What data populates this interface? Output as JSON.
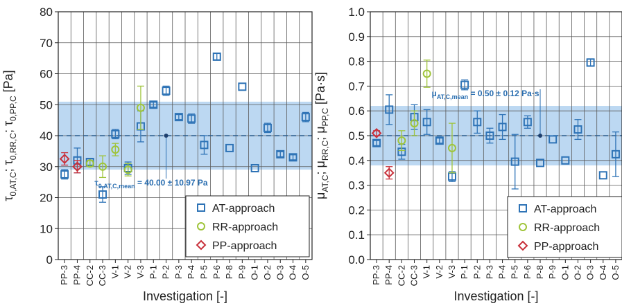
{
  "chart_data": [
    {
      "type": "scatter",
      "categories": [
        "PP-3",
        "PP-4",
        "CC-2",
        "CC-3",
        "V-1",
        "V-2",
        "V-3",
        "P-1",
        "P-2",
        "P-3",
        "P-4",
        "P-5",
        "P-6",
        "P-8",
        "P-9",
        "O-1",
        "O-2",
        "O-3",
        "O-4",
        "O-5"
      ],
      "xlabel": "Investigation [-]",
      "ylabel": "τ0,AT,C; τ0,RR,C; τ0,PP,C [Pa]",
      "ylabel_parts": [
        "τ",
        "0,AT,C",
        "; τ",
        "0,RR,C",
        "; τ",
        "0,PP,C",
        " [Pa]"
      ],
      "ylim": [
        0,
        80
      ],
      "yticks": [
        "0",
        "10",
        "20",
        "30",
        "40",
        "50",
        "60",
        "70",
        "80"
      ],
      "grid": true,
      "legend_position": "bottom-right",
      "band": {
        "low": 29.03,
        "high": 50.97,
        "color": "#bcd8f2"
      },
      "mean_line": {
        "value": 40.0,
        "label_main": "τ",
        "label_sub": "0,AT,C,mean",
        "label_value": " = 40.00 ± 10.97 Pa",
        "label_color": "#2a6eb0"
      },
      "mean_marker": {
        "category": "P-2",
        "value": 40.0
      },
      "series": [
        {
          "name": "AT-approach",
          "marker": "square",
          "color": "#2e73b6",
          "points": [
            {
              "x": "PP-3",
              "y": 27.5,
              "err": 1.5
            },
            {
              "x": "PP-4",
              "y": 32.0,
              "err": 4.0
            },
            {
              "x": "CC-2",
              "y": 31.5,
              "err": 1.0
            },
            {
              "x": "CC-3",
              "y": 21.0,
              "err": 2.5
            },
            {
              "x": "V-1",
              "y": 40.5,
              "err": 1.5
            },
            {
              "x": "V-2",
              "y": 29.5,
              "err": 2.0
            },
            {
              "x": "V-3",
              "y": 43.0,
              "err": 5.0
            },
            {
              "x": "P-1",
              "y": 50.0,
              "err": 0.8
            },
            {
              "x": "P-2",
              "y": 54.5,
              "err": 1.5
            },
            {
              "x": "P-3",
              "y": 46.0,
              "err": 0.8
            },
            {
              "x": "P-4",
              "y": 45.5,
              "err": 1.5
            },
            {
              "x": "P-5",
              "y": 37.0,
              "err": 3.0
            },
            {
              "x": "P-6",
              "y": 65.5,
              "err": 1.0
            },
            {
              "x": "P-8",
              "y": 36.0,
              "err": 0
            },
            {
              "x": "P-9",
              "y": 55.8,
              "err": 0
            },
            {
              "x": "O-1",
              "y": 29.5,
              "err": 0
            },
            {
              "x": "O-2",
              "y": 42.5,
              "err": 1.5
            },
            {
              "x": "O-3",
              "y": 34.0,
              "err": 0.8
            },
            {
              "x": "O-4",
              "y": 33.0,
              "err": 0.8
            },
            {
              "x": "O-5",
              "y": 46.0,
              "err": 1.5
            }
          ]
        },
        {
          "name": "RR-approach",
          "marker": "circle",
          "color": "#9fc43a",
          "points": [
            {
              "x": "CC-2",
              "y": 31.0,
              "err": 1.0
            },
            {
              "x": "CC-3",
              "y": 30.0,
              "err": 3.5
            },
            {
              "x": "V-2",
              "y": 29.0,
              "err": 2.0
            },
            {
              "x": "V-1",
              "y": 35.5,
              "err": 2.0
            },
            {
              "x": "V-3",
              "y": 49.0,
              "err": 7.0
            }
          ]
        },
        {
          "name": "PP-approach",
          "marker": "diamond",
          "color": "#c8303a",
          "points": [
            {
              "x": "PP-3",
              "y": 32.5,
              "err": 2.0
            },
            {
              "x": "PP-4",
              "y": 30.0,
              "err": 2.0
            }
          ]
        }
      ]
    },
    {
      "type": "scatter",
      "categories": [
        "PP-3",
        "PP-4",
        "CC-2",
        "CC-3",
        "V-1",
        "V-2",
        "V-3",
        "P-1",
        "P-2",
        "P-3",
        "P-4",
        "P-5",
        "P-6",
        "P-8",
        "P-9",
        "O-1",
        "O-2",
        "O-3",
        "O-4",
        "O-5"
      ],
      "xlabel": "Investigation [-]",
      "ylabel": "μAT,C; μRR,C; μPP,C [Pa·s]",
      "ylabel_parts": [
        "μ",
        "AT,C",
        "; μ",
        "RR,C",
        "; μ",
        "PP,C",
        " [Pa·s]"
      ],
      "ylim": [
        0,
        1.0
      ],
      "yticks": [
        "0.0",
        "0.1",
        "0.2",
        "0.3",
        "0.4",
        "0.5",
        "0.6",
        "0.7",
        "0.8",
        "0.9",
        "1.0"
      ],
      "grid": true,
      "legend_position": "bottom-right",
      "band": {
        "low": 0.38,
        "high": 0.62,
        "color": "#bcd8f2"
      },
      "mean_line": {
        "value": 0.5,
        "label_main": "μ",
        "label_sub": "AT,C,mean",
        "label_value": " = 0.50 ± 0.12 Pa·s",
        "label_color": "#2a6eb0"
      },
      "mean_marker": {
        "category": "P-8",
        "value": 0.5
      },
      "series": [
        {
          "name": "AT-approach",
          "marker": "square",
          "color": "#2e73b6",
          "points": [
            {
              "x": "PP-3",
              "y": 0.47,
              "err": 0.01
            },
            {
              "x": "PP-4",
              "y": 0.605,
              "err": 0.06
            },
            {
              "x": "CC-2",
              "y": 0.435,
              "err": 0.03
            },
            {
              "x": "CC-3",
              "y": 0.575,
              "err": 0.05
            },
            {
              "x": "V-1",
              "y": 0.555,
              "err": 0.05
            },
            {
              "x": "V-2",
              "y": 0.48,
              "err": 0.01
            },
            {
              "x": "V-3",
              "y": 0.335,
              "err": 0.02
            },
            {
              "x": "P-1",
              "y": 0.705,
              "err": 0.02
            },
            {
              "x": "P-2",
              "y": 0.555,
              "err": 0.045
            },
            {
              "x": "P-3",
              "y": 0.5,
              "err": 0.03
            },
            {
              "x": "P-4",
              "y": 0.535,
              "err": 0.05
            },
            {
              "x": "P-5",
              "y": 0.395,
              "err": 0.11
            },
            {
              "x": "P-6",
              "y": 0.555,
              "err": 0.025
            },
            {
              "x": "P-8",
              "y": 0.39,
              "err": 0
            },
            {
              "x": "P-9",
              "y": 0.485,
              "err": 0
            },
            {
              "x": "O-1",
              "y": 0.4,
              "err": 0
            },
            {
              "x": "O-2",
              "y": 0.525,
              "err": 0.04
            },
            {
              "x": "O-3",
              "y": 0.795,
              "err": 0.015
            },
            {
              "x": "O-4",
              "y": 0.34,
              "err": 0
            },
            {
              "x": "O-5",
              "y": 0.425,
              "err": 0.09
            }
          ]
        },
        {
          "name": "RR-approach",
          "marker": "circle",
          "color": "#9fc43a",
          "points": [
            {
              "x": "CC-2",
              "y": 0.48,
              "err": 0.04
            },
            {
              "x": "CC-3",
              "y": 0.55,
              "err": 0.05
            },
            {
              "x": "V-1",
              "y": 0.75,
              "err": 0.055
            },
            {
              "x": "V-3",
              "y": 0.45,
              "err": 0.1
            }
          ]
        },
        {
          "name": "PP-approach",
          "marker": "diamond",
          "color": "#c8303a",
          "points": [
            {
              "x": "PP-3",
              "y": 0.51,
              "err": 0.01
            },
            {
              "x": "PP-4",
              "y": 0.35,
              "err": 0.025
            }
          ]
        }
      ]
    }
  ]
}
